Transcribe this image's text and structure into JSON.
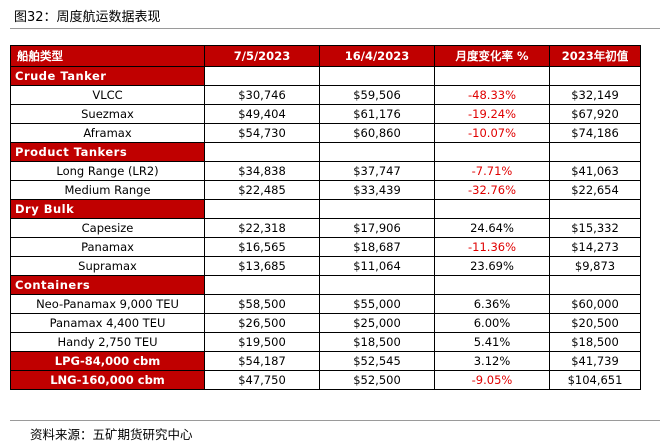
{
  "figure": {
    "title": "图32：周度航运数据表现",
    "source": "资料来源：五矿期货研究中心"
  },
  "table": {
    "headers": [
      "船舶类型",
      "7/5/2023",
      "16/4/2023",
      "月度变化率 %",
      "2023年初值"
    ],
    "sections": [
      {
        "name": "Crude Tanker",
        "rows": [
          {
            "name": "VLCC",
            "v1": "$30,746",
            "v2": "$59,506",
            "chg": "-48.33%",
            "neg": true,
            "start": "$32,149"
          },
          {
            "name": "Suezmax",
            "v1": "$49,404",
            "v2": "$61,176",
            "chg": "-19.24%",
            "neg": true,
            "start": "$67,920"
          },
          {
            "name": "Aframax",
            "v1": "$54,730",
            "v2": "$60,860",
            "chg": "-10.07%",
            "neg": true,
            "start": "$74,186"
          }
        ]
      },
      {
        "name": "Product Tankers",
        "rows": [
          {
            "name": "Long Range (LR2)",
            "v1": "$34,838",
            "v2": "$37,747",
            "chg": "-7.71%",
            "neg": true,
            "start": "$41,063"
          },
          {
            "name": "Medium Range",
            "v1": "$22,485",
            "v2": "$33,439",
            "chg": "-32.76%",
            "neg": true,
            "start": "$22,654"
          }
        ]
      },
      {
        "name": "Dry Bulk",
        "rows": [
          {
            "name": "Capesize",
            "v1": "$22,318",
            "v2": "$17,906",
            "chg": "24.64%",
            "neg": false,
            "start": "$15,332"
          },
          {
            "name": "Panamax",
            "v1": "$16,565",
            "v2": "$18,687",
            "chg": "-11.36%",
            "neg": true,
            "start": "$14,273"
          },
          {
            "name": "Supramax",
            "v1": "$13,685",
            "v2": "$11,064",
            "chg": "23.69%",
            "neg": false,
            "start": "$9,873"
          }
        ]
      },
      {
        "name": "Containers",
        "rows": [
          {
            "name": "Neo-Panamax 9,000 TEU",
            "v1": "$58,500",
            "v2": "$55,000",
            "chg": "6.36%",
            "neg": false,
            "start": "$60,000"
          },
          {
            "name": "Panamax 4,400 TEU",
            "v1": "$26,500",
            "v2": "$25,000",
            "chg": "6.00%",
            "neg": false,
            "start": "$20,500"
          },
          {
            "name": "Handy 2,750 TEU",
            "v1": "$19,500",
            "v2": "$18,500",
            "chg": "5.41%",
            "neg": false,
            "start": "$18,500"
          }
        ]
      }
    ],
    "extra_rows": [
      {
        "name": "LPG-84,000 cbm",
        "v1": "$54,187",
        "v2": "$52,545",
        "chg": "3.12%",
        "neg": false,
        "start": "$41,739"
      },
      {
        "name": "LNG-160,000 cbm",
        "v1": "$47,750",
        "v2": "$52,500",
        "chg": "-9.05%",
        "neg": true,
        "start": "$104,651"
      }
    ]
  },
  "colors": {
    "header_red": "#c00000",
    "negative_text": "#e00000"
  }
}
